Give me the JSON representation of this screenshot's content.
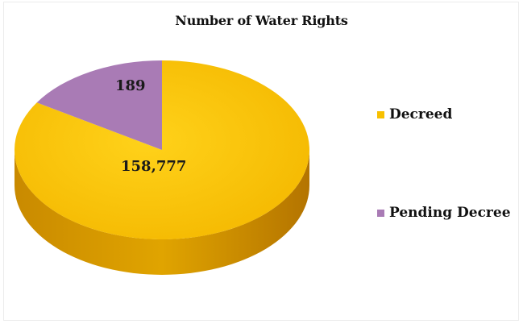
{
  "chart_data": {
    "type": "pie",
    "title": "Number of Water Rights",
    "categories": [
      "Decreed",
      "Pending Decree"
    ],
    "values": [
      158777,
      189
    ],
    "data_labels": [
      "158,777",
      "189"
    ],
    "colors": [
      "#f8c000",
      "#a97bb5"
    ],
    "legend_placement": "right",
    "style": "3d"
  }
}
